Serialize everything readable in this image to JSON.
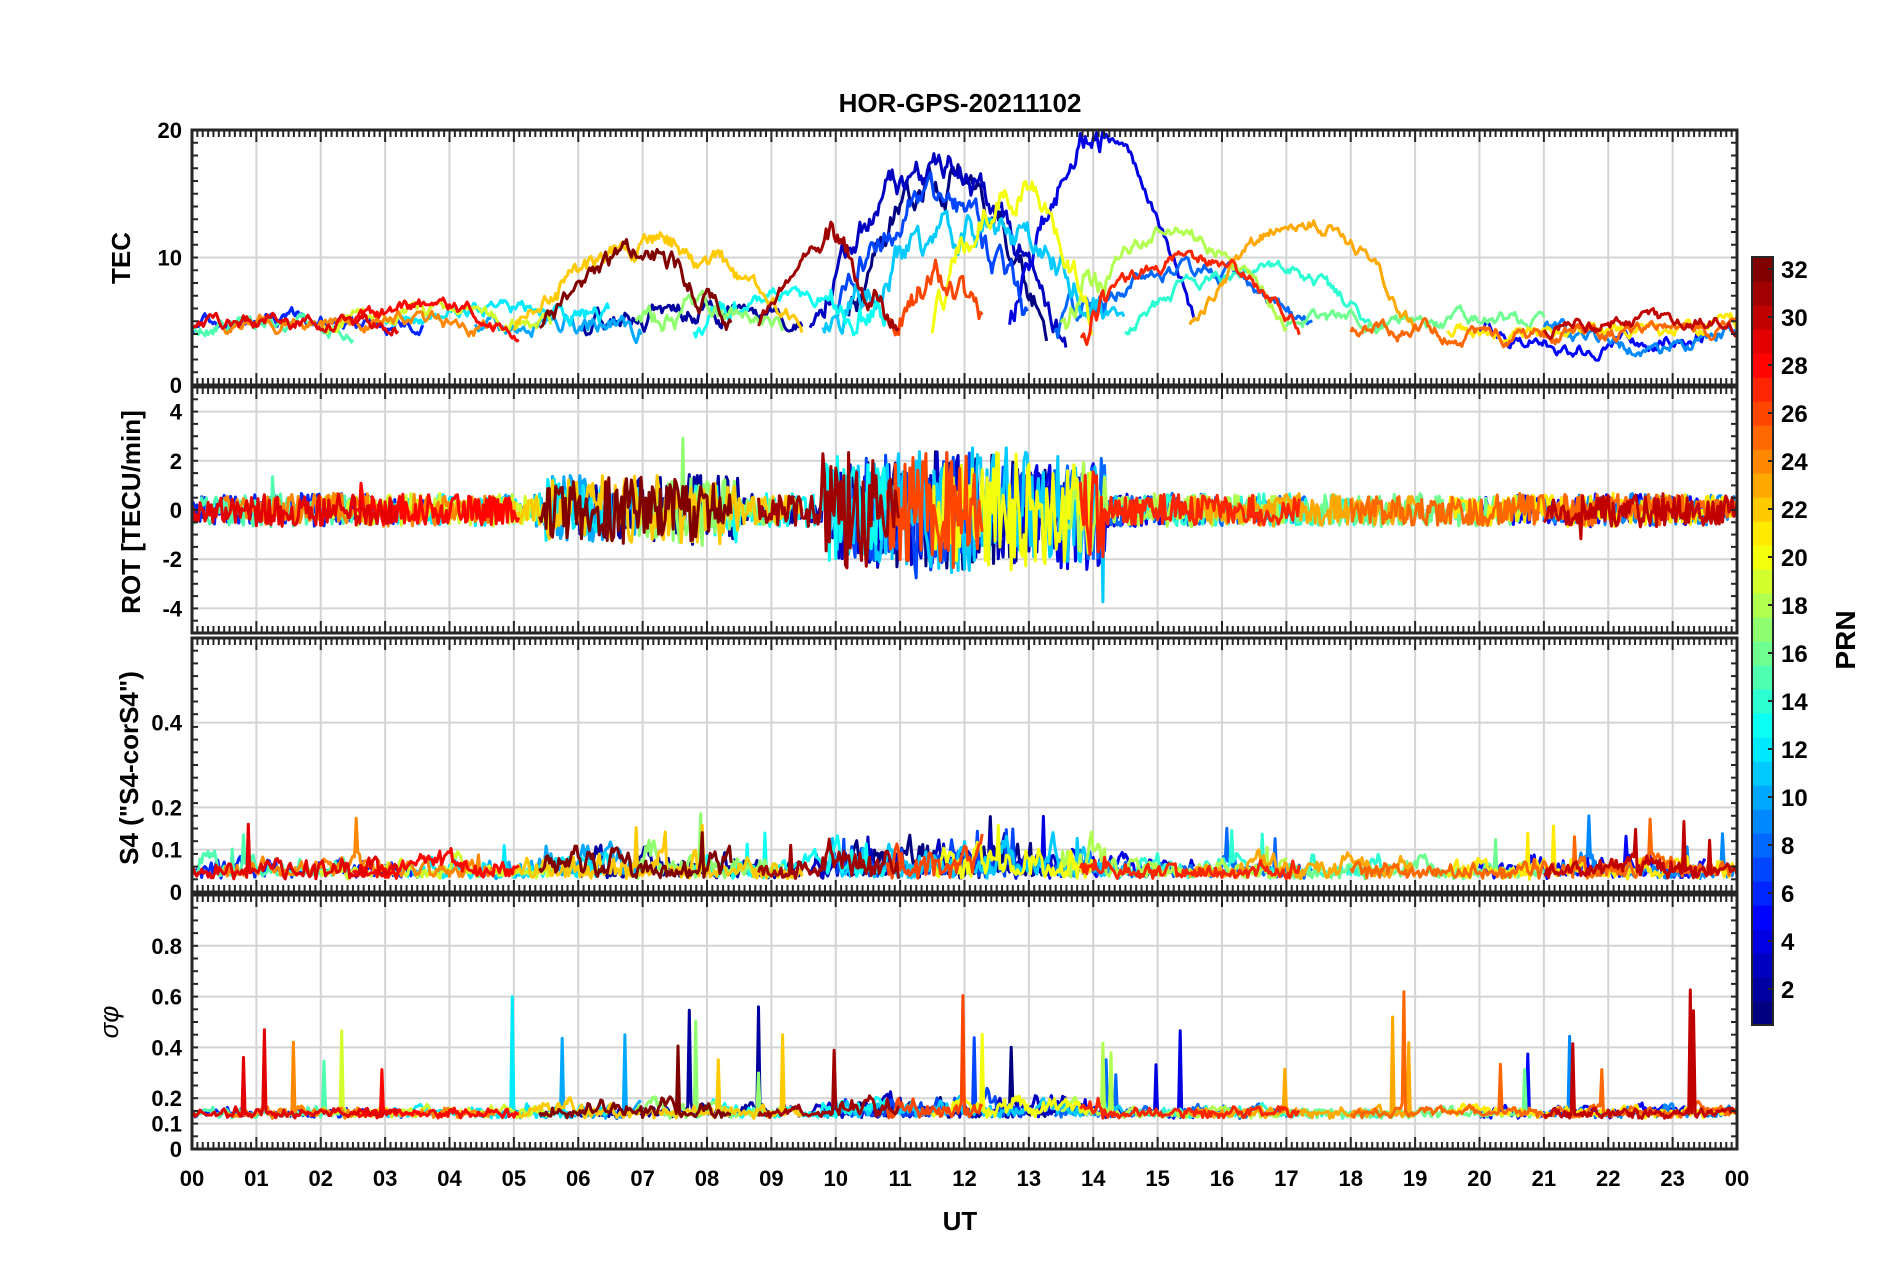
{
  "chart_data": {
    "type": "line",
    "title": "HOR-GPS-20211102",
    "xlabel": "UT",
    "xlim": [
      0,
      24
    ],
    "x_tick_labels": [
      "00",
      "01",
      "02",
      "03",
      "04",
      "05",
      "06",
      "07",
      "08",
      "09",
      "10",
      "11",
      "12",
      "13",
      "14",
      "15",
      "16",
      "17",
      "18",
      "19",
      "20",
      "21",
      "22",
      "23",
      "00"
    ],
    "panels": [
      {
        "id": "tec",
        "ylabel": "TEC",
        "ylim": [
          0,
          20
        ],
        "yticks": [
          0,
          10,
          20
        ],
        "ytick_labels": [
          "0",
          "10",
          "20"
        ],
        "background": 4.5,
        "trend_amplitude": 7.5,
        "noise": 1.2
      },
      {
        "id": "rot",
        "ylabel": "ROT [TECU/min]",
        "ylim": [
          -5,
          5
        ],
        "yticks": [
          -4,
          -2,
          0,
          2,
          4
        ],
        "ytick_labels": [
          "-4",
          "-2",
          "0",
          "2",
          "4"
        ],
        "quiet_noise": 0.35,
        "active_noise": 2.6
      },
      {
        "id": "s4",
        "ylabel": "S4 (\"S4-corS4\")",
        "ylim": [
          0,
          0.6
        ],
        "yticks": [
          0,
          0.1,
          0.2,
          0.4
        ],
        "ytick_labels": [
          "0",
          "0.1",
          "0.2",
          "0.4"
        ],
        "baseline": 0.03,
        "noise": 0.04
      },
      {
        "id": "sigma",
        "ylabel": "σφ",
        "ylim": [
          0,
          1
        ],
        "yticks": [
          0,
          0.1,
          0.2,
          0.4,
          0.6,
          0.8
        ],
        "ytick_labels": [
          "0",
          "0.1",
          "0.2",
          "0.4",
          "0.6",
          "0.8"
        ],
        "baseline": 0.12,
        "noise": 0.04
      }
    ],
    "colorbar": {
      "label": "PRN",
      "colormap": "jet",
      "range": [
        1,
        32
      ],
      "ticks": [
        2,
        4,
        6,
        8,
        10,
        12,
        14,
        16,
        18,
        20,
        22,
        24,
        26,
        28,
        30,
        32
      ],
      "tick_labels": [
        "2",
        "4",
        "6",
        "8",
        "10",
        "12",
        "14",
        "16",
        "18",
        "20",
        "22",
        "24",
        "26",
        "28",
        "30",
        "32"
      ]
    },
    "satellites": [
      {
        "prn": 1,
        "start": 10.2,
        "end": 13.3,
        "peak": 16.5
      },
      {
        "prn": 2,
        "start": 6.0,
        "end": 9.5,
        "peak": 6
      },
      {
        "prn": 3,
        "start": 9.6,
        "end": 13.6,
        "peak": 17
      },
      {
        "prn": 4,
        "start": 12.7,
        "end": 15.6,
        "peak": 19.5
      },
      {
        "prn": 5,
        "start": 20.0,
        "end": 23.5,
        "peak": 3
      },
      {
        "prn": 6,
        "start": 0.0,
        "end": 3.6,
        "peak": 5
      },
      {
        "prn": 7,
        "start": 10.0,
        "end": 13.0,
        "peak": 15
      },
      {
        "prn": 8,
        "start": 13.4,
        "end": 17.4,
        "peak": 9
      },
      {
        "prn": 9,
        "start": 21.0,
        "end": 24.0,
        "peak": 3
      },
      {
        "prn": 10,
        "start": 4.4,
        "end": 7.0,
        "peak": 5
      },
      {
        "prn": 11,
        "start": 9.8,
        "end": 14.5,
        "peak": 12
      },
      {
        "prn": 12,
        "start": 3.0,
        "end": 6.5,
        "peak": 6
      },
      {
        "prn": 13,
        "start": 7.8,
        "end": 10.8,
        "peak": 7
      },
      {
        "prn": 14,
        "start": 14.5,
        "end": 18.5,
        "peak": 9
      },
      {
        "prn": 15,
        "start": 0.0,
        "end": 2.5,
        "peak": 5
      },
      {
        "prn": 16,
        "start": 17.0,
        "end": 21.0,
        "peak": 5
      },
      {
        "prn": 17,
        "start": 6.9,
        "end": 9.2,
        "peak": 6
      },
      {
        "prn": 18,
        "start": 13.5,
        "end": 17.0,
        "peak": 12
      },
      {
        "prn": 19,
        "start": 2.0,
        "end": 5.6,
        "peak": 6
      },
      {
        "prn": 20,
        "start": 11.5,
        "end": 14.0,
        "peak": 16
      },
      {
        "prn": 21,
        "start": 19.5,
        "end": 24.0,
        "peak": 4
      },
      {
        "prn": 22,
        "start": 5.0,
        "end": 9.5,
        "peak": 11
      },
      {
        "prn": 23,
        "start": 15.5,
        "end": 19.0,
        "peak": 13
      },
      {
        "prn": 24,
        "start": 0.5,
        "end": 4.7,
        "peak": 5
      },
      {
        "prn": 25,
        "start": 18.0,
        "end": 24.0,
        "peak": 4
      },
      {
        "prn": 26,
        "start": 10.8,
        "end": 12.3,
        "peak": 8
      },
      {
        "prn": 27,
        "start": 13.8,
        "end": 17.2,
        "peak": 10
      },
      {
        "prn": 28,
        "start": 2.5,
        "end": 5.1,
        "peak": 6
      },
      {
        "prn": 29,
        "start": 0.0,
        "end": 3.2,
        "peak": 5
      },
      {
        "prn": 30,
        "start": 21.0,
        "end": 24.0,
        "peak": 5
      },
      {
        "prn": 31,
        "start": 8.8,
        "end": 11.0,
        "peak": 11
      },
      {
        "prn": 32,
        "start": 5.4,
        "end": 8.4,
        "peak": 10
      }
    ]
  }
}
